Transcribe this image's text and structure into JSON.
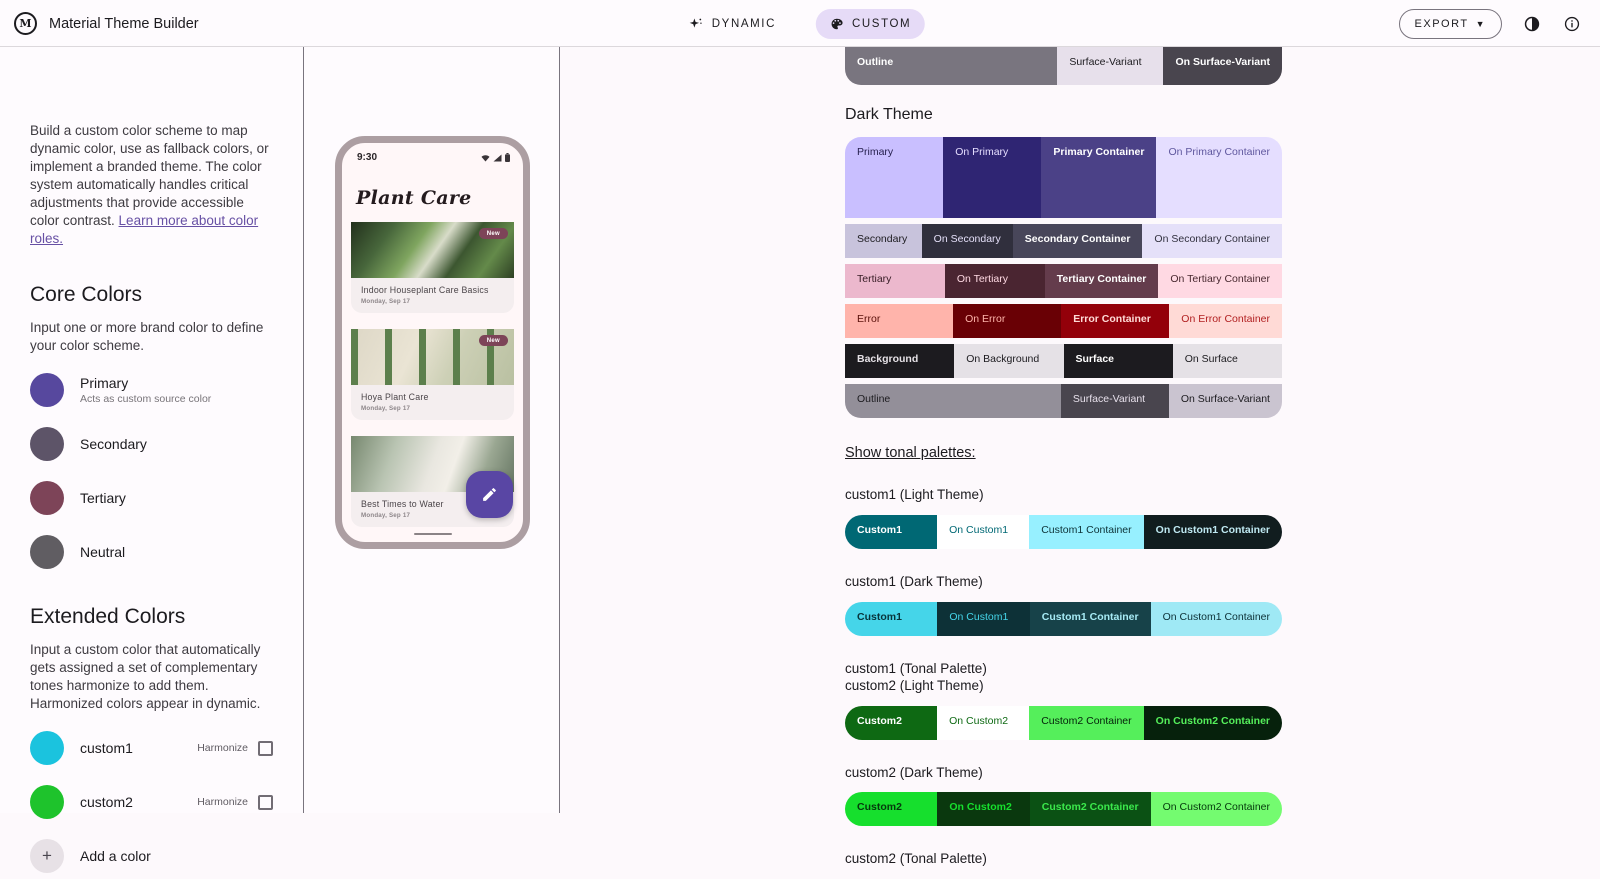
{
  "header": {
    "app_title": "Material Theme Builder",
    "dynamic_tab": "DYNAMIC",
    "custom_tab": "CUSTOM",
    "export_label": "EXPORT",
    "custom_tab_bg": "#E6DBF7"
  },
  "sidebar": {
    "intro_text": "Build a custom color scheme to map dynamic color, use as fallback colors, or implement a branded theme. The color system automatically handles critical adjustments that provide accessible color contrast. ",
    "intro_link": "Learn more about color roles.",
    "core": {
      "title": "Core Colors",
      "desc": "Input one or more brand color to define your color scheme.",
      "colors": [
        {
          "name": "Primary",
          "sub": "Acts as custom source color",
          "hex": "#57489E"
        },
        {
          "name": "Secondary",
          "hex": "#5D5468"
        },
        {
          "name": "Tertiary",
          "hex": "#7D4458"
        },
        {
          "name": "Neutral",
          "hex": "#605D62"
        }
      ]
    },
    "extended": {
      "title": "Extended Colors",
      "desc": "Input a custom color that automatically gets assigned a set of complementary tones harmonize to add them. Harmonized colors appear in dynamic.",
      "colors": [
        {
          "name": "custom1",
          "hex": "#1BC3DE",
          "harmonize_label": "Harmonize"
        },
        {
          "name": "custom2",
          "hex": "#1EC32C",
          "harmonize_label": "Harmonize"
        }
      ],
      "add_label": "Add a color"
    }
  },
  "phone": {
    "time": "9:30",
    "app_title": "Plant Care",
    "cards": [
      {
        "title": "Indoor Houseplant Care Basics",
        "date": "Monday, Sep 17",
        "badge": "New"
      },
      {
        "title": "Hoya Plant Care",
        "date": "Monday, Sep 17",
        "badge": "New"
      },
      {
        "title": "Best Times to Water",
        "date": "Monday, Sep 17",
        "badge": ""
      }
    ],
    "fab_color": "#5946A4"
  },
  "right": {
    "dark_theme_title": "Dark Theme",
    "tonal_link": "Show tonal palettes:",
    "labels": {
      "custom1_light": "custom1 (Light Theme)",
      "custom1_dark": "custom1 (Dark Theme)",
      "custom1_tonal": "custom1 (Tonal Palette)",
      "custom2_light": "custom2 (Light Theme)",
      "custom2_dark": "custom2 (Dark Theme)",
      "custom2_tonal": "custom2 (Tonal Palette)"
    },
    "tables": {
      "light_partial": {
        "rows": [
          {
            "h": 38,
            "cells": [
              {
                "label": "Outline",
                "bg": "#79757F",
                "fg": "#FFFFFF",
                "span": 2,
                "bold": true
              },
              {
                "label": "Surface-Variant",
                "bg": "#E7E0EB",
                "fg": "#1C1B1F"
              },
              {
                "label": "On Surface-Variant",
                "bg": "#49454E",
                "fg": "#FFFFFF",
                "bold": true
              }
            ]
          }
        ]
      },
      "dark": {
        "rows": [
          {
            "h": 81,
            "cells": [
              {
                "label": "Primary",
                "bg": "#C9BFFF",
                "fg": "#251F4D"
              },
              {
                "label": "On Primary",
                "bg": "#2F2573",
                "fg": "#E5DEFF"
              },
              {
                "label": "Primary Container",
                "bg": "#4B4187",
                "fg": "#FFFFFF",
                "bold": true
              },
              {
                "label": "On Primary Container",
                "bg": "#E5DEFF",
                "fg": "#5F579E"
              }
            ]
          },
          {
            "h": 34,
            "cells": [
              {
                "label": "Secondary",
                "bg": "#C8C3DC",
                "fg": "#1C1B1F"
              },
              {
                "label": "On Secondary",
                "bg": "#302F3D",
                "fg": "#E5E0F9"
              },
              {
                "label": "Secondary Container",
                "bg": "#48465A",
                "fg": "#FFFFFF",
                "bold": true
              },
              {
                "label": "On Secondary Container",
                "bg": "#E5E0F9",
                "fg": "#32313F"
              }
            ]
          },
          {
            "h": 34,
            "cells": [
              {
                "label": "Tertiary",
                "bg": "#ECB8CD",
                "fg": "#371C25"
              },
              {
                "label": "On Tertiary",
                "bg": "#4A2531",
                "fg": "#FFD9E3"
              },
              {
                "label": "Tertiary Container",
                "bg": "#643C4C",
                "fg": "#FFFFFF",
                "bold": true
              },
              {
                "label": "On Tertiary Container",
                "bg": "#FFD9E3",
                "fg": "#48282F"
              }
            ]
          },
          {
            "h": 34,
            "cells": [
              {
                "label": "Error",
                "bg": "#FFB4AB",
                "fg": "#59100A"
              },
              {
                "label": "On Error",
                "bg": "#690005",
                "fg": "#FFB4AB"
              },
              {
                "label": "Error Container",
                "bg": "#93000A",
                "fg": "#FFDAD6",
                "bold": true
              },
              {
                "label": "On Error Container",
                "bg": "#FFDAD6",
                "fg": "#B11F20"
              }
            ]
          },
          {
            "h": 34,
            "cells": [
              {
                "label": "Background",
                "bg": "#1C1B1F",
                "fg": "#E5E1E6",
                "bold": true
              },
              {
                "label": "On Background",
                "bg": "#E5E1E6",
                "fg": "#1C1B1F"
              },
              {
                "label": "Surface",
                "bg": "#1C1B1F",
                "fg": "#FFFFFF",
                "bold": true
              },
              {
                "label": "On Surface",
                "bg": "#E5E1E6",
                "fg": "#1C1B1F"
              }
            ]
          },
          {
            "h": 34,
            "cells": [
              {
                "label": "Outline",
                "bg": "#938F99",
                "fg": "#1C1B1F",
                "span": 2
              },
              {
                "label": "Surface-Variant",
                "bg": "#49454E",
                "fg": "#E7E0EB"
              },
              {
                "label": "On Surface-Variant",
                "bg": "#CAC4D0",
                "fg": "#1C1B1F"
              }
            ]
          }
        ]
      },
      "custom1_light": {
        "rows": [
          {
            "h": 34,
            "cells": [
              {
                "label": "Custom1",
                "bg": "#006874",
                "fg": "#FFFFFF",
                "bold": true
              },
              {
                "label": "On Custom1",
                "bg": "#FFFFFF",
                "fg": "#006874"
              },
              {
                "label": "Custom1 Container",
                "bg": "#97F0FF",
                "fg": "#0D3237"
              },
              {
                "label": "On Custom1 Container",
                "bg": "#111D1F",
                "fg": "#BFE9F2",
                "bold": true
              }
            ]
          }
        ]
      },
      "custom1_dark": {
        "rows": [
          {
            "h": 34,
            "cells": [
              {
                "label": "Custom1",
                "bg": "#45D5E9",
                "fg": "#08343B",
                "bold": true
              },
              {
                "label": "On Custom1",
                "bg": "#0D3137",
                "fg": "#45D5E9"
              },
              {
                "label": "Custom1 Container",
                "bg": "#174249",
                "fg": "#A7EBF5",
                "bold": true
              },
              {
                "label": "On Custom1 Container",
                "bg": "#9FE9F5",
                "fg": "#0D3137"
              }
            ]
          }
        ]
      },
      "custom2_light": {
        "rows": [
          {
            "h": 34,
            "cells": [
              {
                "label": "Custom2",
                "bg": "#0E6913",
                "fg": "#FFFFFF",
                "bold": true
              },
              {
                "label": "On Custom2",
                "bg": "#FFFFFF",
                "fg": "#0E6913"
              },
              {
                "label": "Custom2 Container",
                "bg": "#55EF5B",
                "fg": "#04210A"
              },
              {
                "label": "On Custom2 Container",
                "bg": "#06210C",
                "fg": "#55EF5B",
                "bold": true
              }
            ]
          }
        ]
      },
      "custom2_dark": {
        "rows": [
          {
            "h": 34,
            "cells": [
              {
                "label": "Custom2",
                "bg": "#16DF2D",
                "fg": "#05390C",
                "bold": true
              },
              {
                "label": "On Custom2",
                "bg": "#0A380E",
                "fg": "#16DF2D",
                "bold": true
              },
              {
                "label": "Custom2 Container",
                "bg": "#0B5114",
                "fg": "#3BE84C",
                "bold": true
              },
              {
                "label": "On Custom2 Container",
                "bg": "#74FB70",
                "fg": "#05390C"
              }
            ]
          }
        ]
      }
    }
  }
}
